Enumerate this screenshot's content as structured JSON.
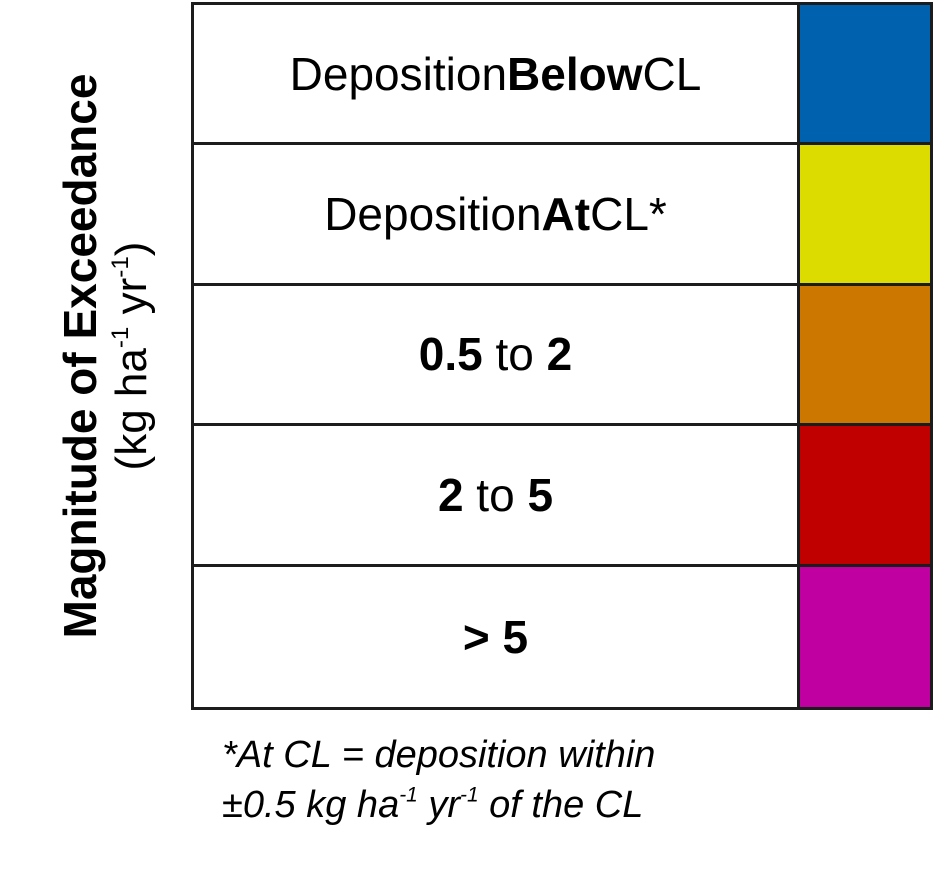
{
  "axis_title": {
    "line1": "Magnitude of Exceedance",
    "unit_open": "(kg ha",
    "unit_exp1": "-1",
    "unit_mid": " yr",
    "unit_exp2": "-1",
    "unit_close": ")"
  },
  "rows": [
    {
      "pre": "Deposition ",
      "bold": "Below",
      "post": " CL",
      "color": "#0061ae"
    },
    {
      "pre": "Deposition ",
      "bold": "At",
      "post": " CL*",
      "color": "#dcdc00"
    },
    {
      "bold_a": "0.5",
      "mid": " to ",
      "bold_b": "2",
      "color": "#cc7700"
    },
    {
      "bold_a": "2",
      "mid": " to ",
      "bold_b": "5",
      "color": "#c00000"
    },
    {
      "bold": "> 5",
      "color": "#c000a0"
    }
  ],
  "footnote": {
    "line1": "*At CL = deposition within",
    "line2_a": "±0.5 kg ha",
    "line2_exp1": "-1",
    "line2_b": " yr",
    "line2_exp2": "-1",
    "line2_c": " of the CL"
  }
}
